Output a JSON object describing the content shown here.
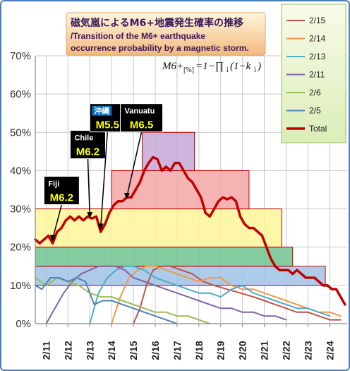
{
  "title": {
    "line1": "磁気嵐によるM6+地震発生確率の推移",
    "line2": "/Transition of the M6+ earthquake",
    "line3": "occurrence probability by a magnetic storm."
  },
  "formula": {
    "main": "M6+",
    "sub": "[%]",
    "rest": "=1−∏",
    "sub2": "i",
    "tail": "(1−k",
    "sub3": "i",
    "end": ")"
  },
  "chart_data": {
    "type": "line",
    "ylim": [
      0,
      70
    ],
    "yticks": [
      "0%",
      "10%",
      "20%",
      "30%",
      "40%",
      "50%",
      "60%",
      "70%"
    ],
    "xlim": [
      10.5,
      24.8
    ],
    "xticks": [
      "2/11",
      "2/12",
      "2/13",
      "2/14",
      "2/15",
      "2/16",
      "2/17",
      "2/18",
      "2/19",
      "2/20",
      "2/21",
      "2/22",
      "2/23",
      "2/24"
    ],
    "xtick_positions": [
      11,
      12,
      13,
      14,
      15,
      16,
      17,
      18,
      19,
      20,
      21,
      22,
      23,
      24
    ],
    "legend": {
      "placement": "top-right",
      "entries": [
        {
          "name": "2/15",
          "color": "#c0504d"
        },
        {
          "name": "2/14",
          "color": "#f79646"
        },
        {
          "name": "2/13",
          "color": "#4bacc6"
        },
        {
          "name": "2/11",
          "color": "#8064a2"
        },
        {
          "name": "2/6",
          "color": "#9bbb59"
        },
        {
          "name": "2/5",
          "color": "#4f81bd"
        },
        {
          "name": "Total",
          "color": "#c00000"
        }
      ]
    },
    "bands": [
      {
        "x0": 10.5,
        "x1": 23.8,
        "y0": 10,
        "y1": 15,
        "fill": "#9dc3e6",
        "stroke": "#c00000"
      },
      {
        "x0": 10.5,
        "x1": 22.3,
        "y0": 15,
        "y1": 20,
        "fill": "#70c48f",
        "stroke": "#c00000"
      },
      {
        "x0": 10.5,
        "x1": 21.8,
        "y0": 20,
        "y1": 30,
        "fill": "#fff599",
        "stroke": "#c00000"
      },
      {
        "x0": 14.0,
        "x1": 20.3,
        "y0": 30,
        "y1": 40,
        "fill": "#f4a6a6",
        "stroke": "#c00000"
      },
      {
        "x0": 15.4,
        "x1": 17.8,
        "y0": 40,
        "y1": 50,
        "fill": "#c5a8d8",
        "stroke": "#c00000"
      }
    ],
    "series": [
      {
        "name": "Total",
        "color": "#c00000",
        "width": 3.5,
        "x": [
          10.5,
          10.7,
          10.9,
          11.1,
          11.3,
          11.5,
          11.7,
          11.9,
          12.1,
          12.3,
          12.5,
          12.7,
          12.9,
          13.1,
          13.3,
          13.5,
          13.7,
          13.9,
          14.1,
          14.3,
          14.5,
          14.7,
          14.9,
          15.1,
          15.3,
          15.5,
          15.7,
          15.9,
          16.1,
          16.3,
          16.5,
          16.7,
          16.9,
          17.1,
          17.3,
          17.5,
          17.7,
          17.9,
          18.1,
          18.3,
          18.5,
          18.7,
          18.9,
          19.1,
          19.3,
          19.5,
          19.7,
          19.9,
          20.1,
          20.3,
          20.5,
          20.7,
          20.9,
          21.1,
          21.3,
          21.5,
          21.7,
          21.9,
          22.1,
          22.3,
          22.5,
          22.7,
          22.9,
          23.1,
          23.3,
          23.5,
          23.7,
          23.9,
          24.1,
          24.3,
          24.5,
          24.7
        ],
        "y": [
          22,
          21,
          22,
          23,
          21,
          24,
          25,
          27,
          28,
          27,
          28,
          27,
          28,
          27.5,
          28,
          24,
          26,
          29,
          31,
          32,
          32,
          33,
          33,
          35,
          37,
          40,
          42,
          43.5,
          43,
          40,
          41,
          40,
          42,
          42,
          40,
          38,
          37,
          35,
          33,
          29,
          28,
          30,
          32,
          33,
          32.5,
          33,
          32,
          28,
          26,
          25,
          25,
          24,
          23,
          20,
          17,
          15,
          14,
          14,
          14,
          13,
          14,
          13,
          12,
          12,
          12,
          11,
          10,
          10,
          9,
          9,
          7,
          5
        ]
      },
      {
        "name": "2/15",
        "color": "#c0504d",
        "width": 2,
        "x": [
          15.0,
          15.3,
          15.6,
          15.9,
          16.3,
          16.7,
          17.2,
          17.7,
          18.2,
          18.7,
          19.3,
          19.9,
          20.5,
          21.0,
          21.5,
          22.0,
          22.5,
          23.0,
          23.5,
          24.0,
          24.5
        ],
        "y": [
          0,
          4,
          10,
          14,
          15,
          15,
          14,
          13,
          11,
          10,
          9,
          8,
          7,
          6,
          5,
          4,
          3,
          3,
          2,
          1,
          1
        ]
      },
      {
        "name": "2/14",
        "color": "#f79646",
        "width": 2,
        "x": [
          14.0,
          14.4,
          14.8,
          15.2,
          15.6,
          16.0,
          16.5,
          17.0,
          17.5,
          18.0,
          18.5,
          19.0,
          19.5,
          20.0,
          20.5,
          21.0,
          21.5,
          22.0,
          22.5,
          23.0,
          23.5,
          24.0,
          24.5
        ],
        "y": [
          0,
          7,
          12,
          14,
          15,
          15,
          14,
          13,
          12,
          11,
          12,
          12,
          10,
          9,
          9,
          8,
          7,
          6,
          5,
          4,
          3,
          3,
          2
        ]
      },
      {
        "name": "2/13",
        "color": "#4bacc6",
        "width": 2,
        "x": [
          13.0,
          13.4,
          13.8,
          14.2,
          14.6,
          15.0,
          15.5,
          16.0,
          16.5,
          17.0,
          17.5,
          18.0,
          18.5,
          19.0,
          19.5,
          20.0,
          20.5,
          21.0,
          21.5,
          22.0,
          22.5,
          23.0,
          23.5,
          24.0
        ],
        "y": [
          0,
          8,
          12,
          14,
          15,
          15,
          14,
          12,
          11,
          10,
          9,
          8,
          8,
          7,
          9,
          10,
          8,
          7,
          6,
          5,
          4,
          4,
          3,
          2
        ]
      },
      {
        "name": "2/11",
        "color": "#8064a2",
        "width": 2,
        "x": [
          11.0,
          11.4,
          11.8,
          12.2,
          12.6,
          13.0,
          13.4,
          13.8,
          14.2,
          14.6,
          15.0,
          15.5,
          16.0,
          16.5,
          17.0,
          17.5,
          18.0,
          18.5,
          19.0,
          19.5,
          20.0,
          20.5,
          21.0,
          21.5,
          22.0
        ],
        "y": [
          0,
          4,
          8,
          11,
          13,
          14,
          15,
          15,
          15,
          14,
          12,
          11,
          10,
          9,
          8,
          7,
          6,
          5,
          4,
          4,
          3,
          3,
          2,
          2,
          1
        ]
      },
      {
        "name": "2/6",
        "color": "#9bbb59",
        "width": 2,
        "x": [
          10.5,
          11.0,
          11.5,
          12.0,
          12.5,
          13.0,
          13.5,
          14.0,
          14.5,
          15.0,
          15.5,
          16.0,
          16.5,
          17.0,
          17.5,
          18.0,
          18.5
        ],
        "y": [
          12,
          10,
          12,
          11,
          10,
          8,
          7,
          7,
          6,
          5,
          4,
          3,
          3,
          2,
          2,
          1,
          0
        ]
      },
      {
        "name": "2/5",
        "color": "#4f81bd",
        "width": 2,
        "x": [
          10.5,
          10.8,
          11.2,
          11.6,
          12.0,
          12.4,
          12.8,
          13.2,
          13.6,
          14.0,
          14.5,
          15.0,
          15.5,
          16.0,
          16.5,
          17.0
        ],
        "y": [
          10,
          9,
          12,
          12,
          11,
          12,
          11,
          5,
          6,
          6,
          5,
          4,
          3,
          2,
          1,
          0
        ]
      }
    ],
    "annotations": [
      {
        "name": "Fiji",
        "mag": "M6.2",
        "box_x": 10.9,
        "box_y": 38.5,
        "point_x": 11.3,
        "point_y": 21.5,
        "name_color": "#ffffff",
        "name_bg": "#000000",
        "mag_color": "#ffff00",
        "bg": "#000000"
      },
      {
        "name": "Chile",
        "mag": "M6.2",
        "box_x": 12.1,
        "box_y": 50.5,
        "point_x": 13.0,
        "point_y": 27.5,
        "name_color": "#ffffff",
        "name_bg": "#000000",
        "mag_color": "#ffff00",
        "bg": "#000000"
      },
      {
        "name": "沖縄",
        "mag": "M5.5",
        "box_x": 13.0,
        "box_y": 57.5,
        "point_x": 13.5,
        "point_y": 24.5,
        "name_color": "#ffffff",
        "name_bg": "#0070c0",
        "mag_color": "#ffff00",
        "bg": "#000000"
      },
      {
        "name": "Vanuatu",
        "mag": "M6.5",
        "box_x": 14.4,
        "box_y": 57.5,
        "point_x": 14.7,
        "point_y": 32.5,
        "name_color": "#ffffff",
        "name_bg": "#000000",
        "mag_color": "#ffff00",
        "bg": "#000000"
      }
    ]
  }
}
